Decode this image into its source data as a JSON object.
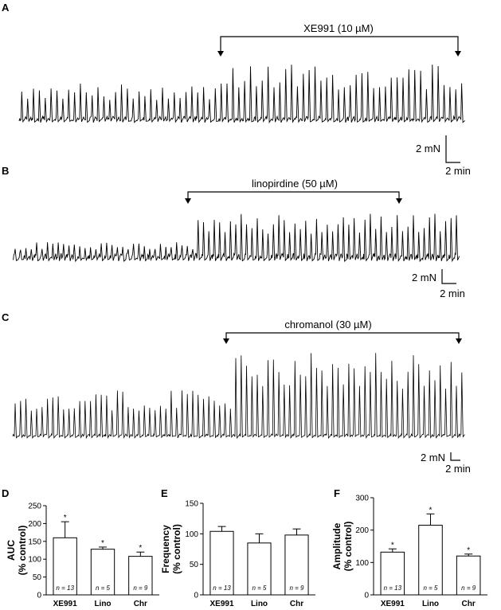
{
  "panels": {
    "A": {
      "label": "A",
      "drug": "XE991 (10 µM)",
      "scale_y": "2 mN",
      "scale_x": "2 min"
    },
    "B": {
      "label": "B",
      "drug": "linopirdine (50 µM)",
      "scale_y": "2 mN",
      "scale_x": "2 min"
    },
    "C": {
      "label": "C",
      "drug": "chromanol (30 µM)",
      "scale_y": "2 mN",
      "scale_x": "2 min"
    }
  },
  "chart_data": [
    {
      "panel": "D",
      "type": "bar",
      "categories": [
        "XE991",
        "Lino",
        "Chr"
      ],
      "values": [
        160,
        128,
        108
      ],
      "errors": [
        45,
        6,
        12
      ],
      "significant": [
        true,
        true,
        true
      ],
      "n_labels": [
        "n = 13",
        "n = 5",
        "n = 9"
      ],
      "ylabel": [
        "AUC",
        "(% control)"
      ],
      "ylim": [
        0,
        250
      ],
      "yticks": [
        0,
        50,
        100,
        150,
        200,
        250
      ]
    },
    {
      "panel": "E",
      "type": "bar",
      "categories": [
        "XE991",
        "Lino",
        "Chr"
      ],
      "values": [
        104,
        85,
        98
      ],
      "errors": [
        8,
        15,
        10
      ],
      "significant": [
        false,
        false,
        false
      ],
      "n_labels": [
        "n = 13",
        "n = 5",
        "n = 9"
      ],
      "ylabel": [
        "Frequency",
        "(% control)"
      ],
      "ylim": [
        0,
        150
      ],
      "yticks": [
        0,
        50,
        100,
        150
      ]
    },
    {
      "panel": "F",
      "type": "bar",
      "categories": [
        "XE991",
        "Lino",
        "Chr"
      ],
      "values": [
        132,
        215,
        120
      ],
      "errors": [
        10,
        35,
        6
      ],
      "significant": [
        true,
        true,
        true
      ],
      "n_labels": [
        "n = 13",
        "n = 5",
        "n = 9"
      ],
      "ylabel": [
        "Amplitude",
        "(% control)"
      ],
      "ylim": [
        0,
        300
      ],
      "yticks": [
        0,
        100,
        200,
        300
      ]
    }
  ],
  "significance_mark": "*"
}
